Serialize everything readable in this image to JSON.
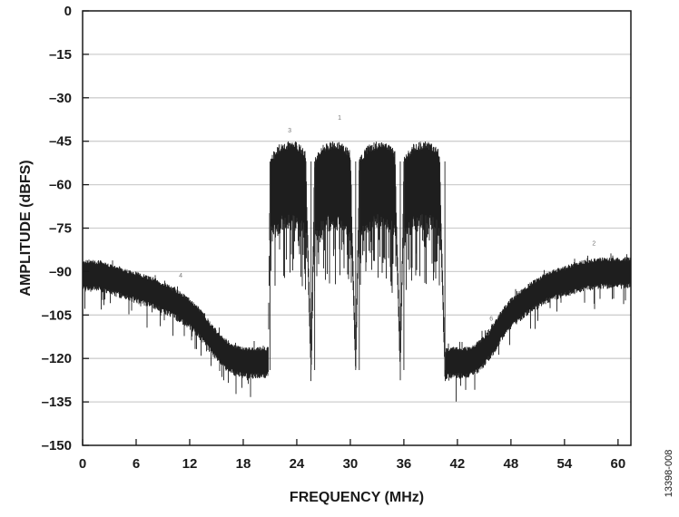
{
  "chart_data": {
    "type": "line",
    "title": "",
    "xlabel": "FREQUENCY (MHz)",
    "ylabel": "AMPLITUDE (dBFS)",
    "xlim": [
      0,
      61.44
    ],
    "ylim": [
      -150,
      0
    ],
    "x_ticks": [
      0,
      6,
      12,
      18,
      24,
      30,
      36,
      42,
      48,
      54,
      60
    ],
    "y_ticks": [
      0,
      -15,
      -30,
      -45,
      -60,
      -75,
      -90,
      -105,
      -120,
      -135,
      -150
    ],
    "grid": "horizontal",
    "legend": "none",
    "series": [
      {
        "x": [
          0,
          2,
          4,
          6,
          8,
          10,
          12,
          13,
          14,
          15,
          16,
          17,
          18,
          19,
          20,
          20.8,
          21,
          22,
          23,
          24,
          25,
          25.6,
          26,
          27,
          28,
          29,
          30,
          30.6,
          31,
          32,
          33,
          34,
          35,
          35.6,
          36,
          37,
          38,
          39,
          40,
          40.6,
          41,
          42,
          43,
          44,
          45,
          46,
          47,
          48,
          50,
          52,
          54,
          56,
          58,
          60,
          61.44
        ],
        "y": [
          -91,
          -91,
          -93,
          -95,
          -97,
          -100,
          -104,
          -107,
          -111,
          -115,
          -118,
          -120,
          -121,
          -121,
          -121,
          -121,
          -60,
          -56,
          -55,
          -55,
          -58,
          -122,
          -60,
          -56,
          -55,
          -55,
          -58,
          -122,
          -60,
          -56,
          -55,
          -55,
          -58,
          -122,
          -60,
          -56,
          -55,
          -55,
          -58,
          -122,
          -121,
          -121,
          -121,
          -120,
          -117,
          -113,
          -108,
          -104,
          -99,
          -95,
          -93,
          -91,
          -90,
          -90,
          -90
        ]
      }
    ],
    "annotations": [
      "1",
      "2",
      "3",
      "4",
      "5",
      "6"
    ],
    "color": "#1e1e1e",
    "figure_id": "13398-008"
  }
}
